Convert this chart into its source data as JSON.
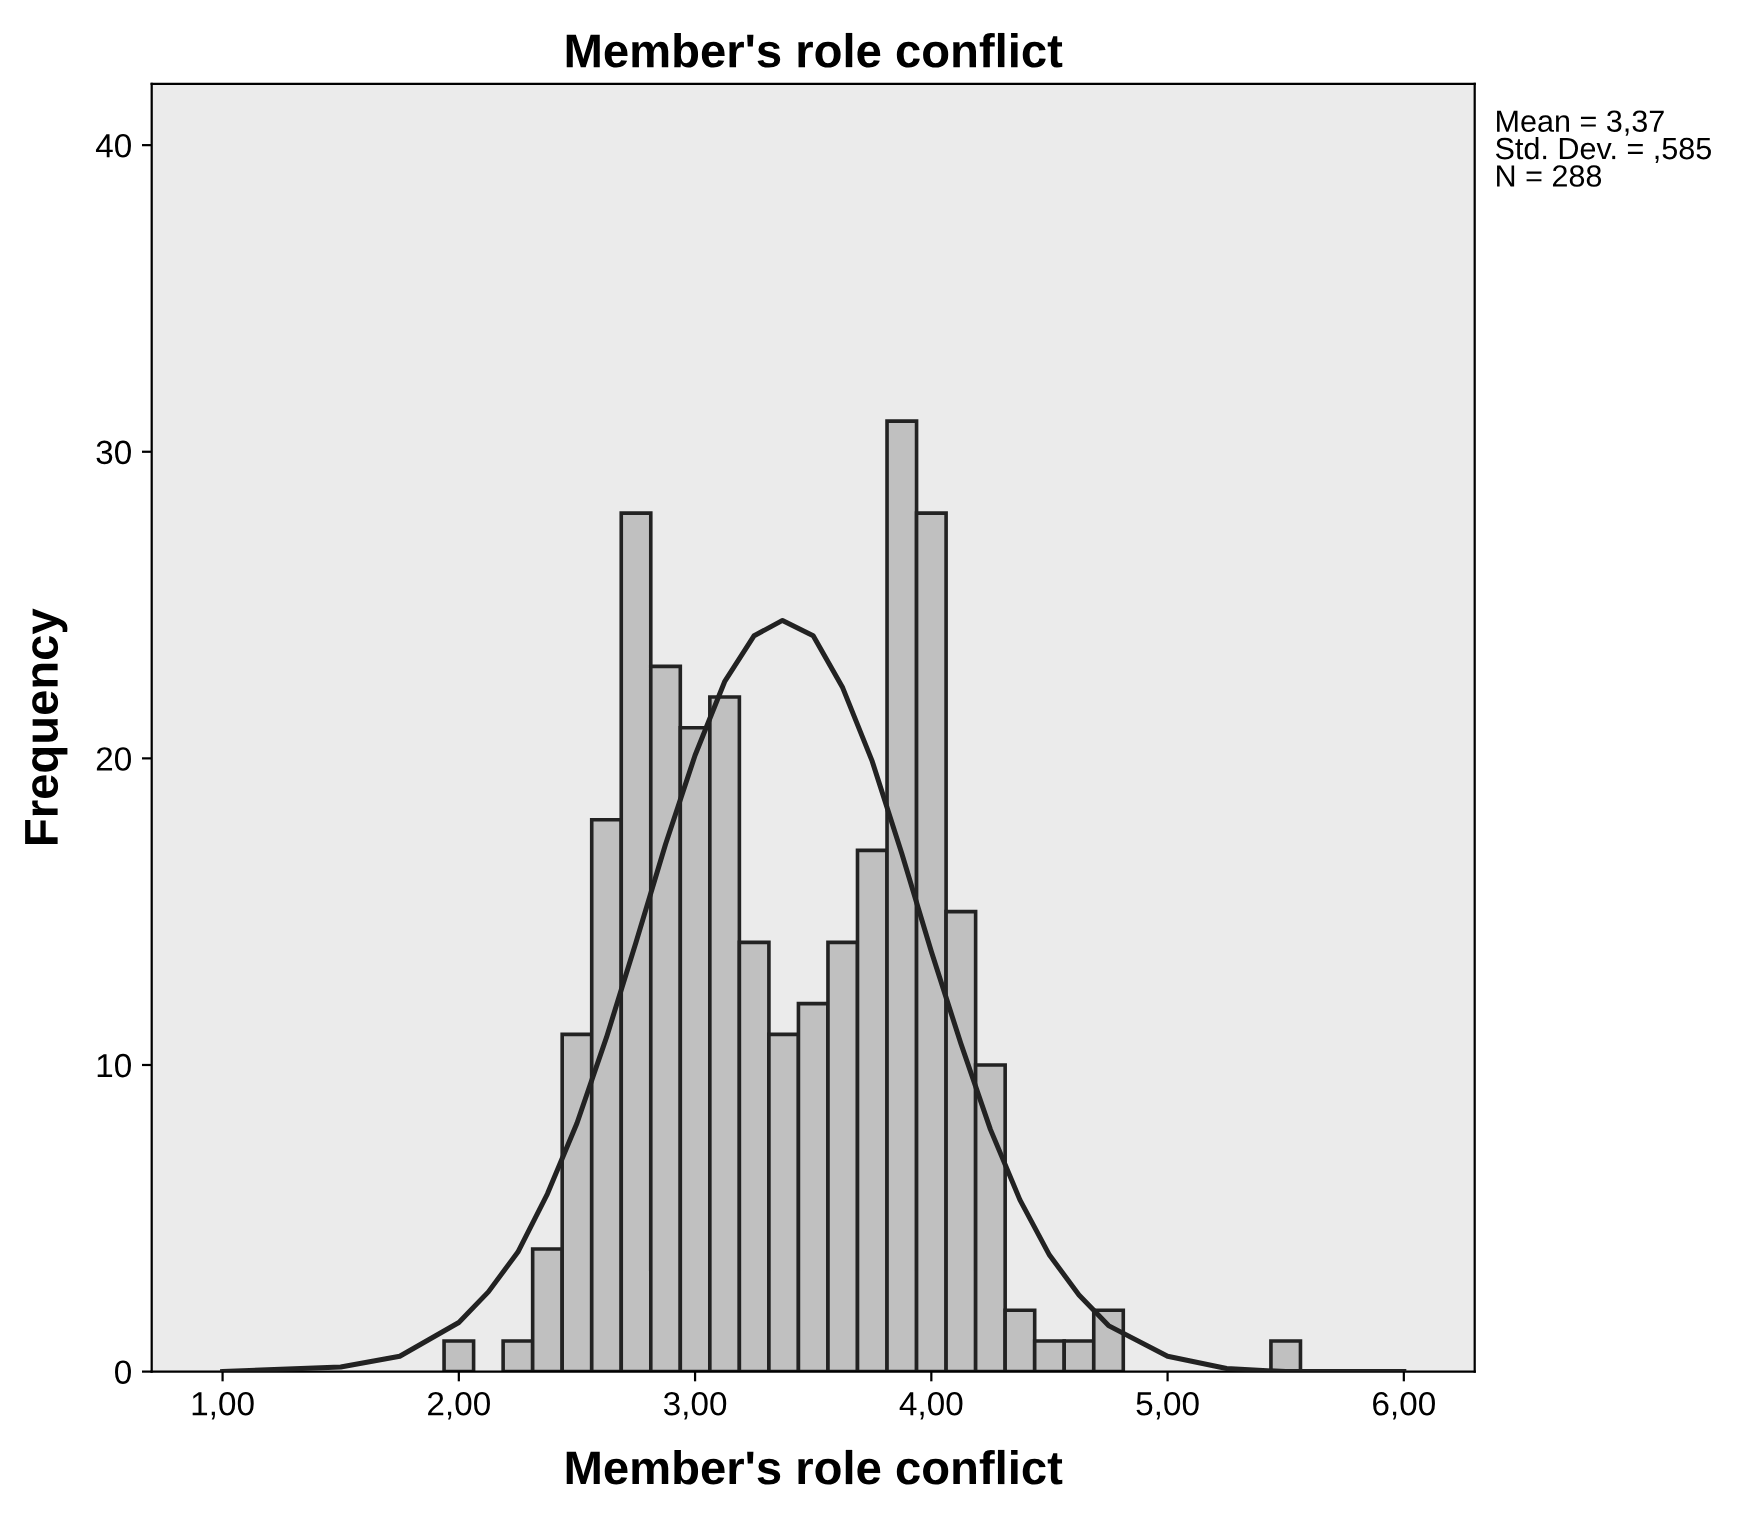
{
  "chart_data": {
    "type": "histogram",
    "title": "Member's role conflict",
    "xlabel": "Member's role conflict",
    "ylabel": "Frequency",
    "bins": [
      1.9375,
      2.0625,
      2.1875,
      2.3125,
      2.4375,
      2.5625,
      2.6875,
      2.8125,
      2.9375,
      3.0625,
      3.1875,
      3.3125,
      3.4375,
      3.5625,
      3.6875,
      3.8125,
      3.9375,
      4.0625,
      4.1875,
      4.3125,
      4.4375,
      4.5625,
      4.6875,
      4.8125,
      4.9375,
      5.0625,
      5.1875,
      5.3125,
      5.4375,
      5.5625
    ],
    "values": [
      1,
      0,
      1,
      4,
      11,
      18,
      28,
      23,
      21,
      22,
      14,
      11,
      12,
      14,
      17,
      31,
      28,
      15,
      10,
      2,
      1,
      1,
      2,
      0,
      0,
      0,
      0,
      0,
      1
    ],
    "color": "#c0c0c0",
    "series": [
      {
        "type": "line",
        "color": "#222222",
        "x": [
          1.0,
          1.5,
          1.75,
          2.0,
          2.125,
          2.25,
          2.375,
          2.5,
          2.625,
          2.75,
          2.875,
          3.0,
          3.125,
          3.25,
          3.37,
          3.5,
          3.625,
          3.75,
          3.875,
          4.0,
          4.125,
          4.25,
          4.375,
          4.5,
          4.625,
          4.75,
          5.0,
          5.25,
          5.5,
          6.0
        ],
        "values": [
          0.0,
          0.15,
          0.5,
          1.6,
          2.6,
          3.9,
          5.8,
          8.1,
          10.9,
          14.0,
          17.2,
          20.1,
          22.5,
          24.0,
          24.5,
          24.0,
          22.3,
          19.9,
          16.9,
          13.7,
          10.7,
          7.9,
          5.6,
          3.8,
          2.5,
          1.5,
          0.5,
          0.1,
          0.0,
          0.0
        ]
      }
    ],
    "xlim": [
      0.7,
      6.3
    ],
    "ylim": [
      0,
      42
    ],
    "xticks": [
      {
        "value": 1,
        "label": "1,00"
      },
      {
        "value": 2,
        "label": "2,00"
      },
      {
        "value": 3,
        "label": "3,00"
      },
      {
        "value": 4,
        "label": "4,00"
      },
      {
        "value": 5,
        "label": "5,00"
      },
      {
        "value": 6,
        "label": "6,00"
      }
    ],
    "yticks": [
      0,
      10,
      20,
      30,
      40
    ],
    "annotations": [
      "Mean = 3,37\nStd. Dev. = ,585\nN = 288"
    ]
  }
}
